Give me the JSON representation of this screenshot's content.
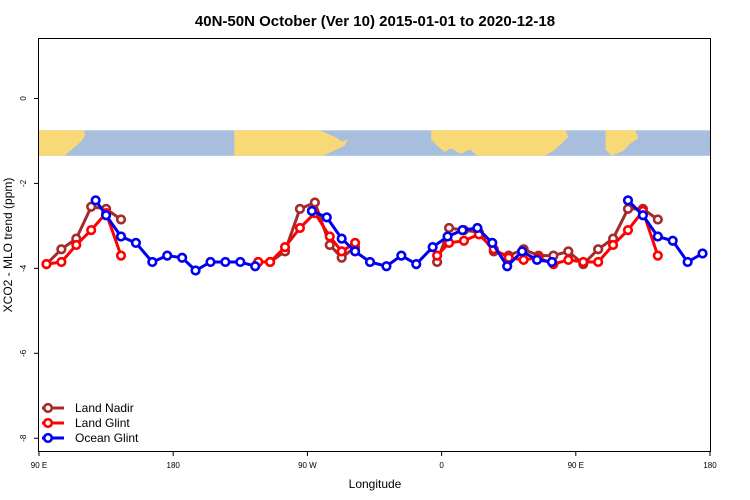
{
  "chart_data": {
    "type": "line",
    "title": "40N-50N October (Ver 10)   2015-01-01 to 2020-12-18",
    "xlabel": "Longitude",
    "ylabel": "XCO2 - MLO trend (ppm)",
    "x_ticks": [
      {
        "value": 90,
        "label": "90 E"
      },
      {
        "value": 180,
        "label": "180"
      },
      {
        "value": 270,
        "label": "90 W"
      },
      {
        "value": 360,
        "label": "0"
      },
      {
        "value": 450,
        "label": "90 E"
      },
      {
        "value": 540,
        "label": "180"
      }
    ],
    "y_ticks": [
      {
        "value": 0,
        "label": "0"
      },
      {
        "value": -2,
        "label": "-2"
      },
      {
        "value": -4,
        "label": "-4"
      },
      {
        "value": -6,
        "label": "-6"
      },
      {
        "value": -8,
        "label": "-8"
      }
    ],
    "xlim": [
      90,
      540
    ],
    "ylim": [
      -8.3,
      1.4
    ],
    "map_strip": {
      "y_top": -0.75,
      "y_bottom": -1.35,
      "land_color": "#f9d977",
      "ocean_color": "#a8bedd"
    },
    "legend_position": "bottom-left",
    "series": [
      {
        "name": "Land Nadir",
        "color": "#a52a2a",
        "segments": [
          [
            [
              95,
              -3.9
            ],
            [
              105,
              -3.55
            ],
            [
              115,
              -3.3
            ],
            [
              125,
              -2.55
            ],
            [
              135,
              -2.6
            ],
            [
              145,
              -2.85
            ]
          ],
          [
            [
              237,
              -3.85
            ],
            [
              245,
              -3.85
            ],
            [
              255,
              -3.6
            ],
            [
              265,
              -2.6
            ],
            [
              275,
              -2.45
            ],
            [
              285,
              -3.45
            ],
            [
              293,
              -3.75
            ],
            [
              302,
              -3.5
            ]
          ],
          [
            [
              357,
              -3.85
            ],
            [
              365,
              -3.05
            ],
            [
              375,
              -3.1
            ],
            [
              385,
              -3.15
            ],
            [
              395,
              -3.6
            ],
            [
              405,
              -3.7
            ],
            [
              415,
              -3.55
            ],
            [
              425,
              -3.7
            ],
            [
              435,
              -3.7
            ],
            [
              445,
              -3.6
            ],
            [
              455,
              -3.9
            ],
            [
              465,
              -3.55
            ],
            [
              475,
              -3.3
            ],
            [
              485,
              -2.6
            ],
            [
              495,
              -2.6
            ],
            [
              505,
              -2.85
            ]
          ]
        ]
      },
      {
        "name": "Land Glint",
        "color": "#ff0000",
        "segments": [
          [
            [
              95,
              -3.9
            ],
            [
              105,
              -3.85
            ],
            [
              115,
              -3.45
            ],
            [
              125,
              -3.1
            ],
            [
              135,
              -2.7
            ],
            [
              145,
              -3.7
            ]
          ],
          [
            [
              237,
              -3.85
            ],
            [
              245,
              -3.85
            ],
            [
              255,
              -3.5
            ],
            [
              265,
              -3.05
            ],
            [
              275,
              -2.7
            ],
            [
              285,
              -3.25
            ],
            [
              293,
              -3.6
            ],
            [
              302,
              -3.4
            ]
          ],
          [
            [
              357,
              -3.7
            ],
            [
              365,
              -3.4
            ],
            [
              375,
              -3.35
            ],
            [
              385,
              -3.2
            ],
            [
              395,
              -3.55
            ],
            [
              405,
              -3.75
            ],
            [
              415,
              -3.8
            ],
            [
              425,
              -3.75
            ],
            [
              435,
              -3.9
            ],
            [
              445,
              -3.8
            ],
            [
              455,
              -3.85
            ],
            [
              465,
              -3.85
            ],
            [
              475,
              -3.45
            ],
            [
              485,
              -3.1
            ],
            [
              495,
              -2.65
            ],
            [
              505,
              -3.7
            ]
          ]
        ]
      },
      {
        "name": "Ocean Glint",
        "color": "#0000ee",
        "segments": [
          [
            [
              128,
              -2.4
            ],
            [
              135,
              -2.75
            ],
            [
              145,
              -3.25
            ],
            [
              155,
              -3.4
            ],
            [
              166,
              -3.85
            ],
            [
              176,
              -3.7
            ],
            [
              186,
              -3.75
            ],
            [
              195,
              -4.05
            ],
            [
              205,
              -3.85
            ],
            [
              215,
              -3.85
            ],
            [
              225,
              -3.85
            ],
            [
              235,
              -3.95
            ]
          ],
          [
            [
              273,
              -2.65
            ],
            [
              283,
              -2.8
            ],
            [
              293,
              -3.3
            ],
            [
              302,
              -3.6
            ],
            [
              312,
              -3.85
            ],
            [
              323,
              -3.95
            ],
            [
              333,
              -3.7
            ],
            [
              343,
              -3.9
            ],
            [
              354,
              -3.5
            ],
            [
              364,
              -3.25
            ],
            [
              374,
              -3.1
            ],
            [
              384,
              -3.05
            ],
            [
              394,
              -3.4
            ],
            [
              404,
              -3.95
            ],
            [
              414,
              -3.6
            ],
            [
              424,
              -3.8
            ],
            [
              434,
              -3.85
            ]
          ],
          [
            [
              485,
              -2.4
            ],
            [
              495,
              -2.75
            ],
            [
              505,
              -3.25
            ],
            [
              515,
              -3.35
            ],
            [
              525,
              -3.85
            ],
            [
              535,
              -3.65
            ]
          ]
        ]
      }
    ]
  }
}
